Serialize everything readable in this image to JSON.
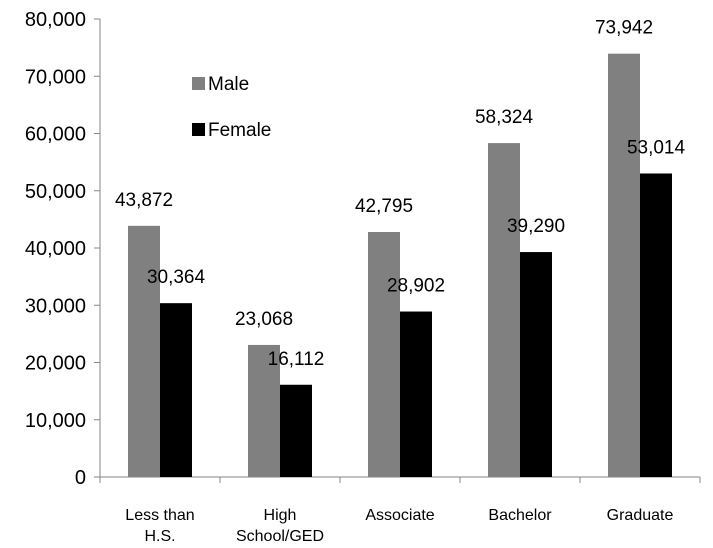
{
  "chart_data": {
    "type": "bar",
    "title": "",
    "xlabel": "",
    "ylabel": "",
    "ylim": [
      0,
      80000
    ],
    "yticks": [
      0,
      10000,
      20000,
      30000,
      40000,
      50000,
      60000,
      70000,
      80000
    ],
    "ytick_labels": [
      "0",
      "10,000",
      "20,000",
      "30,000",
      "40,000",
      "50,000",
      "60,000",
      "70,000",
      "80,000"
    ],
    "categories": [
      [
        "Less than",
        "H.S."
      ],
      [
        "High",
        "School/GED"
      ],
      [
        "Associate"
      ],
      [
        "Bachelor"
      ],
      [
        "Graduate"
      ]
    ],
    "series": [
      {
        "name": "Male",
        "color": "#808080",
        "values": [
          43872,
          23068,
          42795,
          58324,
          73942
        ],
        "labels": [
          "43,872",
          "23,068",
          "42,795",
          "58,324",
          "73,942"
        ]
      },
      {
        "name": "Female",
        "color": "#000000",
        "values": [
          30364,
          16112,
          28902,
          39290,
          53014
        ],
        "labels": [
          "30,364",
          "16,112",
          "28,902",
          "39,290",
          "53,014"
        ]
      }
    ],
    "grid": false,
    "legend_position": "top-left inside plot"
  }
}
